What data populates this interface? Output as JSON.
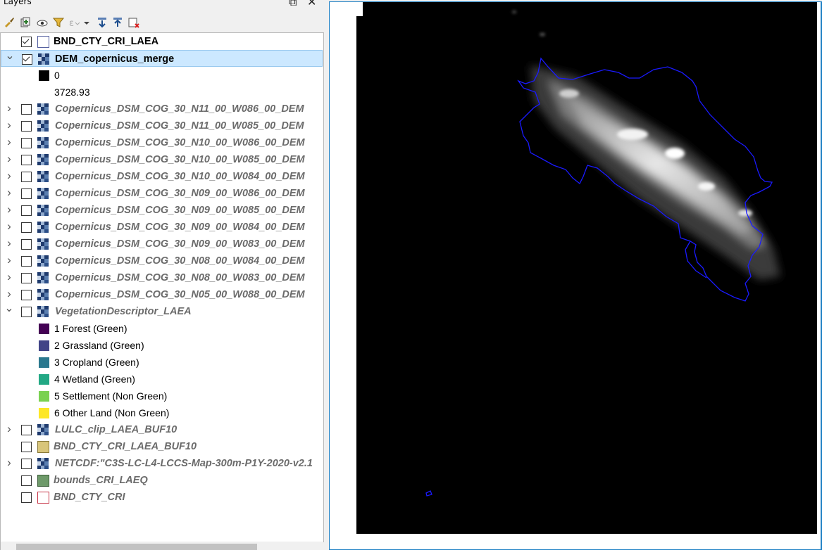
{
  "panel": {
    "title": "Layers",
    "float_glyph": "⧉",
    "close_glyph": "✕"
  },
  "toolbar": {
    "icons": [
      "style-brush-icon",
      "add-group-icon",
      "visibility-eye-icon",
      "filter-icon",
      "expression-filter-icon",
      "expand-all-icon",
      "collapse-all-icon",
      "remove-layer-icon"
    ]
  },
  "layers": [
    {
      "name": "BND_CTY_CRI_LAEA",
      "checked": true,
      "style": "bold",
      "icon": "vector-empty-polygon-icon"
    },
    {
      "name": "DEM_copernicus_merge",
      "checked": true,
      "style": "bold",
      "icon": "raster-icon",
      "selected": true,
      "expanded": true,
      "legend": [
        {
          "label": "0",
          "color": "#000000"
        },
        {
          "label": "3728.93",
          "color": "#ffffff"
        }
      ]
    },
    {
      "name": "Copernicus_DSM_COG_30_N11_00_W086_00_DEM",
      "checked": false,
      "style": "italic",
      "icon": "raster-icon"
    },
    {
      "name": "Copernicus_DSM_COG_30_N11_00_W085_00_DEM",
      "checked": false,
      "style": "italic",
      "icon": "raster-icon"
    },
    {
      "name": "Copernicus_DSM_COG_30_N10_00_W086_00_DEM",
      "checked": false,
      "style": "italic",
      "icon": "raster-icon"
    },
    {
      "name": "Copernicus_DSM_COG_30_N10_00_W085_00_DEM",
      "checked": false,
      "style": "italic",
      "icon": "raster-icon"
    },
    {
      "name": "Copernicus_DSM_COG_30_N10_00_W084_00_DEM",
      "checked": false,
      "style": "italic",
      "icon": "raster-icon"
    },
    {
      "name": "Copernicus_DSM_COG_30_N09_00_W086_00_DEM",
      "checked": false,
      "style": "italic",
      "icon": "raster-icon"
    },
    {
      "name": "Copernicus_DSM_COG_30_N09_00_W085_00_DEM",
      "checked": false,
      "style": "italic",
      "icon": "raster-icon"
    },
    {
      "name": "Copernicus_DSM_COG_30_N09_00_W084_00_DEM",
      "checked": false,
      "style": "italic",
      "icon": "raster-icon"
    },
    {
      "name": "Copernicus_DSM_COG_30_N09_00_W083_00_DEM",
      "checked": false,
      "style": "italic",
      "icon": "raster-icon"
    },
    {
      "name": "Copernicus_DSM_COG_30_N08_00_W084_00_DEM",
      "checked": false,
      "style": "italic",
      "icon": "raster-icon"
    },
    {
      "name": "Copernicus_DSM_COG_30_N08_00_W083_00_DEM",
      "checked": false,
      "style": "italic",
      "icon": "raster-icon"
    },
    {
      "name": "Copernicus_DSM_COG_30_N05_00_W088_00_DEM",
      "checked": false,
      "style": "italic",
      "icon": "raster-icon"
    },
    {
      "name": "VegetationDescriptor_LAEA",
      "checked": false,
      "style": "italic",
      "icon": "raster-icon",
      "expanded": true,
      "legend": [
        {
          "label": "1 Forest (Green)",
          "color": "#440154"
        },
        {
          "label": "2 Grassland (Green)",
          "color": "#414487"
        },
        {
          "label": "3 Cropland (Green)",
          "color": "#2a788e"
        },
        {
          "label": "4 Wetland (Green)",
          "color": "#22a884"
        },
        {
          "label": "5 Settlement (Non Green)",
          "color": "#7ad151"
        },
        {
          "label": "6 Other Land (Non Green)",
          "color": "#fde725"
        }
      ]
    },
    {
      "name": "LULC_clip_LAEA_BUF10",
      "checked": false,
      "style": "italic",
      "icon": "raster-icon"
    },
    {
      "name": "BND_CTY_CRI_LAEA_BUF10",
      "checked": false,
      "style": "italic",
      "icon": "vector-fill-polygon-icon",
      "fill": "#d8c57a",
      "stroke": "#8a7a3a",
      "leaf": true
    },
    {
      "name": "NETCDF:\"C3S-LC-L4-LCCS-Map-300m-P1Y-2020-v2.1",
      "checked": false,
      "style": "italic",
      "icon": "raster-icon"
    },
    {
      "name": "bounds_CRI_LAEQ",
      "checked": false,
      "style": "italic",
      "icon": "vector-fill-polygon-icon",
      "fill": "#6e9a6a",
      "stroke": "#3d5e3a",
      "leaf": true
    },
    {
      "name": "BND_CTY_CRI",
      "checked": false,
      "style": "italic",
      "icon": "vector-empty-polygon-icon",
      "fill": "#ffffff",
      "stroke": "#c8384a",
      "leaf": true
    }
  ],
  "map": {
    "background": "#000000",
    "boundary_color": "#1a1aff",
    "canvas_border": "#1c7fc4"
  }
}
